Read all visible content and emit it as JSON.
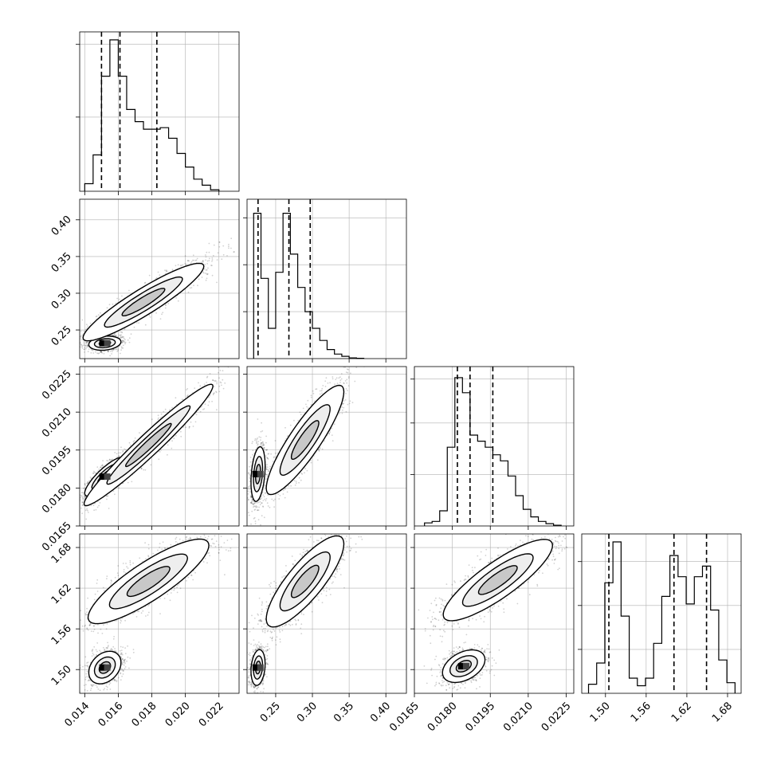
{
  "chart_data": {
    "type": "corner",
    "title": "",
    "parameters": [
      {
        "index": 0,
        "label": "",
        "range": [
          0.0137,
          0.0232
        ],
        "ticks": [
          0.014,
          0.016,
          0.018,
          0.02,
          0.022
        ],
        "tick_labels": [
          "0.014",
          "0.016",
          "0.018",
          "0.020",
          "0.022"
        ],
        "quantiles": [
          0.015,
          0.0161,
          0.0183
        ],
        "hist_bins": [
          0.014,
          0.0145,
          0.015,
          0.0155,
          0.016,
          0.0165,
          0.017,
          0.0175,
          0.018,
          0.0185,
          0.019,
          0.0195,
          0.02,
          0.0205,
          0.021,
          0.0215,
          0.022
        ],
        "hist_counts": [
          0.05,
          0.24,
          0.76,
          1.0,
          0.76,
          0.54,
          0.46,
          0.41,
          0.41,
          0.42,
          0.35,
          0.25,
          0.16,
          0.08,
          0.04,
          0.01
        ],
        "hist_ticks": [
          0.49,
          0.97
        ]
      },
      {
        "index": 1,
        "label": "",
        "range": [
          0.211,
          0.428
        ],
        "ticks": [
          0.25,
          0.3,
          0.35,
          0.4
        ],
        "tick_labels": [
          "0.25",
          "0.30",
          "0.35",
          "0.40"
        ],
        "quantiles": [
          0.226,
          0.268,
          0.297
        ],
        "hist_bins": [
          0.22,
          0.23,
          0.24,
          0.25,
          0.26,
          0.27,
          0.28,
          0.29,
          0.3,
          0.31,
          0.32,
          0.33,
          0.34,
          0.35,
          0.36,
          0.37
        ],
        "hist_counts": [
          0.96,
          0.53,
          0.2,
          0.57,
          0.96,
          0.69,
          0.47,
          0.31,
          0.2,
          0.12,
          0.06,
          0.03,
          0.015,
          0.005,
          0.002
        ],
        "hist_ticks": [
          0.31,
          0.62,
          0.93
        ]
      },
      {
        "index": 2,
        "label": "",
        "range": [
          0.0165,
          0.0228
        ],
        "ticks": [
          0.0165,
          0.018,
          0.0195,
          0.021,
          0.0225
        ],
        "tick_labels": [
          "0.0165",
          "0.0180",
          "0.0195",
          "0.0210",
          "0.0225"
        ],
        "quantiles": [
          0.0182,
          0.0187,
          0.0196
        ],
        "hist_bins": [
          0.0169,
          0.0172,
          0.0175,
          0.0178,
          0.0181,
          0.0184,
          0.0187,
          0.019,
          0.0193,
          0.0196,
          0.0199,
          0.0202,
          0.0205,
          0.0208,
          0.0211,
          0.0214,
          0.0217,
          0.022,
          0.0223
        ],
        "hist_counts": [
          0.02,
          0.03,
          0.1,
          0.52,
          0.98,
          0.88,
          0.6,
          0.56,
          0.52,
          0.47,
          0.43,
          0.33,
          0.2,
          0.11,
          0.06,
          0.03,
          0.015,
          0.005
        ],
        "hist_ticks": [
          0.34,
          0.68,
          0.97
        ]
      },
      {
        "index": 3,
        "label": "",
        "range": [
          1.465,
          1.7
        ],
        "ticks": [
          1.5,
          1.56,
          1.62,
          1.68
        ],
        "tick_labels": [
          "1.50",
          "1.56",
          "1.62",
          "1.68"
        ],
        "quantiles": [
          1.505,
          1.601,
          1.649
        ],
        "hist_bins": [
          1.475,
          1.487,
          1.499,
          1.511,
          1.523,
          1.535,
          1.547,
          1.559,
          1.571,
          1.583,
          1.595,
          1.607,
          1.619,
          1.631,
          1.643,
          1.655,
          1.667,
          1.679,
          1.691
        ],
        "hist_counts": [
          0.06,
          0.2,
          0.73,
          1.0,
          0.51,
          0.1,
          0.05,
          0.1,
          0.33,
          0.64,
          0.91,
          0.77,
          0.59,
          0.77,
          0.84,
          0.55,
          0.22,
          0.07
        ],
        "hist_ticks": [
          0.29,
          0.58,
          0.87
        ]
      }
    ],
    "densities": [
      {
        "x_param": 0,
        "y_param": 1,
        "modes": [
          {
            "weight": 0.42,
            "center": [
              0.0152,
              0.232
            ],
            "sd": [
              0.0004,
              0.004
            ],
            "corr": 0.2
          },
          {
            "weight": 0.58,
            "center": [
              0.0175,
              0.288
            ],
            "sd": [
              0.0015,
              0.022
            ],
            "corr": 0.92
          }
        ]
      },
      {
        "x_param": 0,
        "y_param": 2,
        "modes": [
          {
            "weight": 0.45,
            "center": [
              0.0152,
              0.01845
            ],
            "sd": [
              0.0005,
              0.00032
            ],
            "corr": 0.85
          },
          {
            "weight": 0.55,
            "center": [
              0.0178,
              0.0197
            ],
            "sd": [
              0.0016,
              0.001
            ],
            "corr": 0.97
          }
        ]
      },
      {
        "x_param": 1,
        "y_param": 2,
        "modes": [
          {
            "weight": 0.42,
            "center": [
              0.226,
              0.01855
            ],
            "sd": [
              0.004,
              0.00045
            ],
            "corr": 0.3
          },
          {
            "weight": 0.58,
            "center": [
              0.29,
              0.0199
            ],
            "sd": [
              0.022,
              0.0009
            ],
            "corr": 0.88
          }
        ]
      },
      {
        "x_param": 0,
        "y_param": 3,
        "modes": [
          {
            "weight": 0.42,
            "center": [
              0.0152,
              1.503
            ],
            "sd": [
              0.0004,
              0.01
            ],
            "corr": 0.3
          },
          {
            "weight": 0.58,
            "center": [
              0.0178,
              1.63
            ],
            "sd": [
              0.0015,
              0.026
            ],
            "corr": 0.85
          }
        ]
      },
      {
        "x_param": 1,
        "y_param": 3,
        "modes": [
          {
            "weight": 0.42,
            "center": [
              0.226,
              1.503
            ],
            "sd": [
              0.004,
              0.011
            ],
            "corr": 0.2
          },
          {
            "weight": 0.58,
            "center": [
              0.29,
              1.63
            ],
            "sd": [
              0.022,
              0.028
            ],
            "corr": 0.82
          }
        ]
      },
      {
        "x_param": 2,
        "y_param": 3,
        "modes": [
          {
            "weight": 0.42,
            "center": [
              0.01845,
              1.505
            ],
            "sd": [
              0.00035,
              0.01
            ],
            "corr": 0.4
          },
          {
            "weight": 0.58,
            "center": [
              0.0198,
              1.632
            ],
            "sd": [
              0.0009,
              0.025
            ],
            "corr": 0.85
          }
        ]
      }
    ],
    "grid": true,
    "legend": "none"
  }
}
